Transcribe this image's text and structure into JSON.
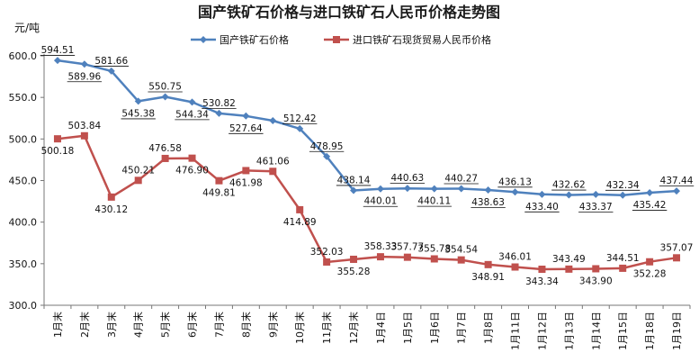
{
  "chart_data": {
    "type": "line",
    "title": "国产铁矿石价格与进口铁矿石人民币价格走势图",
    "ylabel": "元/吨",
    "ylim": [
      300,
      600
    ],
    "yticks": [
      "300.0",
      "350.0",
      "400.0",
      "450.0",
      "500.0",
      "550.0",
      "600.0"
    ],
    "grid": false,
    "legend_position": "top-right",
    "categories": [
      "1月末",
      "2月末",
      "3月末",
      "4月末",
      "5月末",
      "6月末",
      "7月末",
      "8月末",
      "9月末",
      "10月末",
      "11月末",
      "12月末",
      "1月4日",
      "1月5日",
      "1月6日",
      "1月7日",
      "1月8日",
      "1月11日",
      "1月12日",
      "1月13日",
      "1月14日",
      "1月15日",
      "1月18日",
      "1月19日"
    ],
    "series": [
      {
        "name": "国产铁矿石价格",
        "color": "#4f81bd",
        "marker": "diamond",
        "values": [
          594.51,
          589.96,
          581.66,
          545.38,
          550.75,
          544.34,
          530.82,
          527.64,
          522.0,
          512.42,
          478.95,
          438.14,
          440.01,
          440.63,
          440.11,
          440.27,
          438.63,
          436.13,
          433.4,
          432.62,
          433.37,
          432.34,
          435.42,
          437.44
        ],
        "labels": [
          "594.51",
          "589.96",
          "581.66",
          "545.38",
          "550.75",
          "544.34",
          "530.82",
          "527.64",
          "",
          "512.42",
          "478.95",
          "438.14",
          "440.01",
          "440.63",
          "440.11",
          "440.27",
          "438.63",
          "436.13",
          "433.40",
          "432.62",
          "433.37",
          "432.34",
          "435.42",
          "437.44"
        ]
      },
      {
        "name": "进口铁矿石现货贸易人民币价格",
        "color": "#c0504d",
        "marker": "square",
        "values": [
          500.18,
          503.84,
          430.12,
          450.21,
          476.58,
          476.9,
          449.81,
          461.98,
          461.06,
          414.89,
          352.03,
          355.28,
          358.33,
          357.77,
          355.78,
          354.54,
          348.91,
          346.01,
          343.34,
          343.49,
          343.9,
          344.51,
          352.28,
          357.07
        ],
        "labels": [
          "500.18",
          "503.84",
          "430.12",
          "450.21",
          "476.58",
          "476.90",
          "449.81",
          "461.98",
          "461.06",
          "414.89",
          "352.03",
          "355.28",
          "358.33",
          "357.77",
          "355.78",
          "354.54",
          "348.91",
          "346.01",
          "343.34",
          "343.49",
          "343.90",
          "344.51",
          "352.28",
          "357.07"
        ]
      }
    ]
  }
}
